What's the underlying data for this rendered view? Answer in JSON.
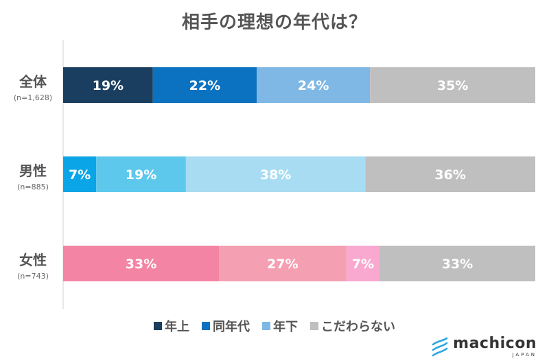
{
  "chart_data": {
    "type": "bar",
    "orientation": "horizontal-stacked",
    "title": "相手の理想の年代は？",
    "unit": "%",
    "series_names": [
      "年上",
      "同年代",
      "年下",
      "こだわらない"
    ],
    "rows": [
      {
        "label": "全体",
        "sub": "(n=1,628)",
        "values": [
          19,
          22,
          24,
          35
        ],
        "colors": [
          "#1a3e5f",
          "#0a72c1",
          "#7fb8e4",
          "#bfbfbf"
        ]
      },
      {
        "label": "男性",
        "sub": "(n=885)",
        "values": [
          7,
          19,
          38,
          36
        ],
        "colors": [
          "#0aa5e6",
          "#5ec8ec",
          "#a8dcf3",
          "#bfbfbf"
        ]
      },
      {
        "label": "女性",
        "sub": "(n=743)",
        "values": [
          33,
          27,
          7,
          33
        ],
        "colors": [
          "#f484a4",
          "#f49fb2",
          "#f9a8cf",
          "#bfbfbf"
        ]
      }
    ],
    "xlim": [
      0,
      100
    ],
    "legend_position": "bottom",
    "legend_colors": [
      "#1a3e5f",
      "#0a72c1",
      "#7fb8e4",
      "#bfbfbf"
    ]
  },
  "brand": {
    "name": "machicon",
    "sub": "JAPAN",
    "color": "#2aa7df"
  }
}
